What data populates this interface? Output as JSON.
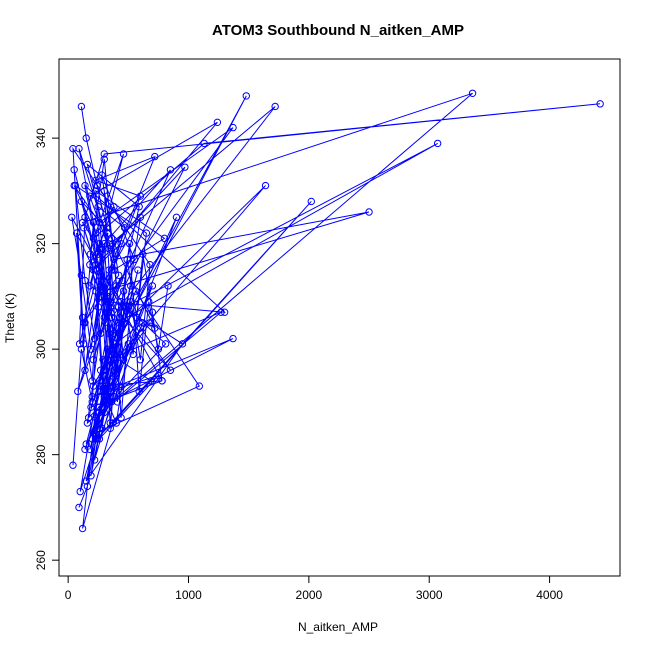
{
  "chart_data": {
    "type": "line",
    "title": "ATOM3 Southbound N_aitken_AMP",
    "xlabel": "N_aitken_AMP",
    "ylabel": "Theta (K)",
    "xlim": [
      -76,
      4585
    ],
    "ylim": [
      257,
      355
    ],
    "xticks": [
      0,
      1000,
      2000,
      3000,
      4000
    ],
    "yticks": [
      260,
      280,
      300,
      320,
      340
    ],
    "color": "#0000ff",
    "marker": "open-circle",
    "series": [
      {
        "x": [
          110,
          150,
          240,
          320,
          180,
          275,
          350,
          390,
          300,
          420,
          130,
          260,
          380,
          210,
          1130,
          4420,
          300,
          140,
          95,
          330,
          250,
          185,
          300,
          400,
          210,
          350,
          80,
          470,
          250,
          360,
          300,
          600,
          230,
          720,
          340,
          160,
          3360,
          120,
          260,
          850,
          300,
          230,
          800,
          380,
          160,
          590,
          450,
          270,
          970,
          340,
          180,
          1240,
          210,
          440,
          110,
          300,
          2500,
          380,
          90,
          330,
          1370,
          260,
          50,
          230,
          460,
          180,
          720,
          360,
          280,
          550,
          320,
          1300,
          140,
          250,
          1720,
          360,
          130,
          230,
          850,
          300,
          400,
          600,
          280,
          140
        ],
        "y": [
          346,
          340,
          331,
          323,
          316,
          310,
          304,
          296,
          330,
          314,
          305,
          320,
          327,
          321,
          339,
          346.5,
          337,
          325,
          301,
          322,
          308,
          318,
          336,
          312,
          298,
          309,
          292,
          323,
          327,
          300,
          311,
          329,
          332,
          336.5,
          315,
          286,
          348.5,
          324,
          319,
          334,
          306,
          330,
          321,
          315,
          335,
          327,
          313,
          303,
          334.5,
          319,
          329,
          343,
          315,
          320,
          328,
          311,
          326,
          317,
          338,
          310,
          342,
          324,
          331,
          322,
          337,
          312,
          304,
          321,
          333,
          317,
          309,
          307,
          331,
          318,
          346,
          306,
          323,
          316,
          296,
          310,
          295,
          325,
          312,
          305
        ]
      },
      {
        "x": [
          90,
          160,
          230,
          300,
          370,
          260,
          190,
          340,
          280,
          410,
          220,
          360,
          150,
          300,
          250,
          380,
          520,
          200,
          270,
          330,
          3070,
          480,
          260,
          120,
          370,
          2020,
          240,
          690,
          350,
          330,
          380,
          1640,
          210,
          1480,
          290,
          100,
          350,
          470,
          580,
          180,
          900,
          310,
          420,
          220,
          1090,
          560,
          270,
          680,
          950,
          150,
          360,
          440,
          810,
          230,
          1270,
          330,
          190,
          780,
          270,
          400,
          500,
          140,
          300,
          600,
          350,
          260,
          700,
          380,
          430,
          170,
          330,
          620,
          260,
          750,
          200,
          1370,
          250
        ],
        "y": [
          270,
          274,
          283,
          292,
          300,
          288,
          276,
          294,
          285,
          302,
          279,
          290,
          282,
          295,
          286,
          298,
          312,
          283,
          296,
          304,
          339,
          308,
          294,
          266,
          286,
          328,
          283,
          294,
          299,
          307,
          303,
          331,
          293,
          348,
          298,
          273,
          291,
          305,
          315,
          281,
          325,
          296,
          308,
          284,
          293,
          311,
          292,
          305,
          301,
          275,
          299,
          309,
          301,
          287,
          307,
          298,
          289,
          294,
          293,
          286,
          301,
          281,
          291,
          304,
          292,
          285,
          312,
          296,
          293,
          287,
          300,
          305,
          283,
          295,
          291,
          302,
          289
        ]
      },
      {
        "x": [
          40,
          110,
          200,
          280,
          350,
          420,
          70,
          140,
          230,
          300,
          370,
          460,
          50,
          130,
          210,
          290,
          360,
          440,
          520,
          600,
          680,
          40,
          120,
          200,
          270,
          340,
          410,
          490,
          570,
          650,
          60,
          140,
          220,
          300,
          380,
          460,
          540,
          620,
          700,
          780,
          30,
          110,
          190,
          270,
          350,
          430,
          510,
          590,
          670,
          750,
          830
        ],
        "y": [
          278,
          300,
          290,
          318,
          285,
          305,
          322,
          296,
          311,
          288,
          320,
          298,
          334,
          301,
          324,
          293,
          315,
          287,
          309,
          298,
          316,
          338,
          306,
          294,
          319,
          303,
          290,
          317,
          306,
          322,
          331,
          313,
          302,
          320,
          291,
          311,
          299,
          318,
          307,
          294,
          325,
          314,
          300,
          312,
          286,
          306,
          320,
          292,
          309,
          300,
          312
        ]
      }
    ]
  }
}
